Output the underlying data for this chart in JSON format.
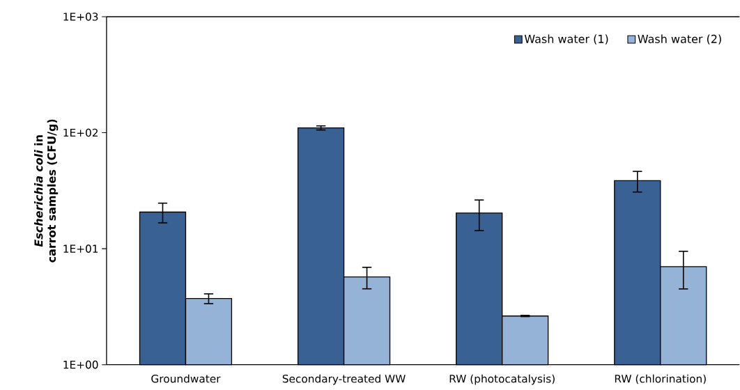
{
  "chart_data": {
    "type": "bar",
    "ylabel": "*Escherichia coli* in carrot samples (CFU/g)",
    "categories": [
      "Groundwater",
      "Secondary-treated WW",
      "RW (photocatalysis)",
      "RW (chlorination)"
    ],
    "series": [
      {
        "name": "Wash water (1)",
        "color": "#3a6194",
        "values": [
          20.7,
          110,
          20.3,
          38.6
        ],
        "errors": [
          4,
          4.5,
          6,
          7.8
        ]
      },
      {
        "name": "Wash water (2)",
        "color": "#95b3d7",
        "values": [
          3.72,
          5.71,
          2.63,
          7.0
        ],
        "errors": [
          0.36,
          1.2,
          0.03,
          2.5
        ]
      }
    ],
    "log": true,
    "ylim": [
      1,
      1000
    ],
    "yticks": [
      {
        "value": 1,
        "label": "1E+00"
      },
      {
        "value": 10,
        "label": "1E+01"
      },
      {
        "value": 100,
        "label": "1E+02"
      },
      {
        "value": 1000,
        "label": "1E+03"
      }
    ],
    "legend": "top right",
    "grid": false
  }
}
